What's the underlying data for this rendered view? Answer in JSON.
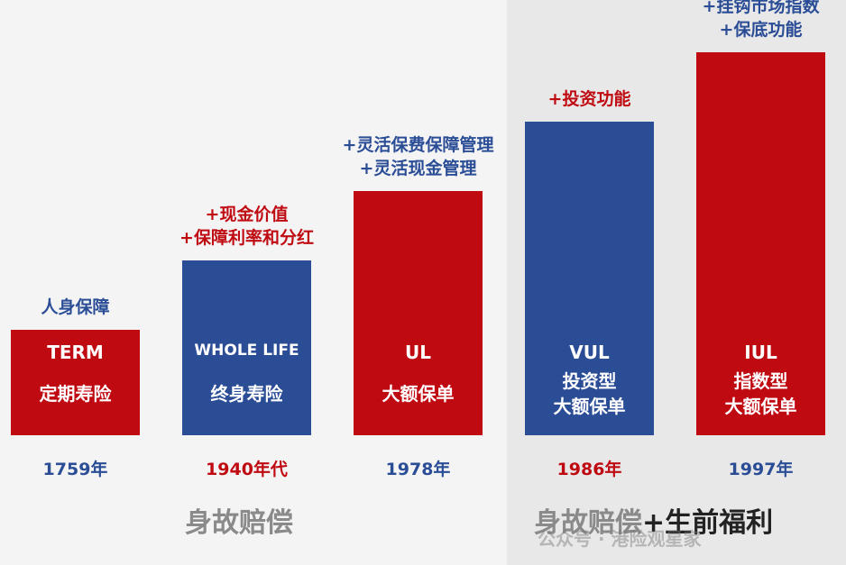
{
  "colors": {
    "red": "#c00a12",
    "blue": "#2a4d96",
    "gray": "#8a8a8a",
    "dark": "#222222"
  },
  "chart_data": {
    "type": "bar",
    "categories": [
      "TERM",
      "WHOLE LIFE",
      "UL",
      "VUL",
      "IUL"
    ],
    "names": [
      "定期寿险",
      "终身寿险",
      "大额保单",
      "投资型\n大额保单",
      "指数型\n大额保单"
    ],
    "years": [
      "1759年",
      "1940年代",
      "1978年",
      "1986年",
      "1997年"
    ],
    "features": [
      "人身保障",
      "+现金价值\n+保障利率和分红",
      "+灵活保费保障管理\n+灵活现金管理",
      "+投资功能",
      "+挂钩市场指数\n+保底功能"
    ],
    "values": [
      1,
      2,
      3,
      4,
      5
    ],
    "bar_colors": [
      "red",
      "blue",
      "red",
      "blue",
      "red"
    ],
    "feature_colors": [
      "blue",
      "red",
      "blue",
      "red",
      "blue"
    ],
    "year_colors": [
      "blue",
      "red",
      "blue",
      "red",
      "blue"
    ],
    "ylim": [
      0,
      5
    ]
  },
  "footer": {
    "left": "身故赔偿",
    "right_prefix": "身故赔偿",
    "right_suffix": "+生前福利"
  },
  "watermark": "公众号 · 港险观星家"
}
